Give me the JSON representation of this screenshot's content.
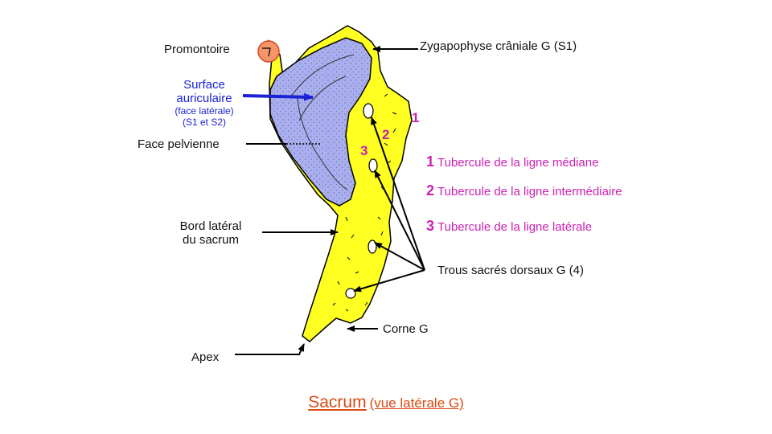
{
  "labels": {
    "promontoire": "Promontoire",
    "surface_line1": "Surface",
    "surface_line2": "auriculaire",
    "surface_sub1": "(face latérale)",
    "surface_sub2": "(S1 et S2)",
    "face_pelvienne": "Face pelvienne",
    "bord_line1": "Bord latéral",
    "bord_line2": "du sacrum",
    "apex": "Apex",
    "zygapophyse": "Zygapophyse crâniale G (S1)",
    "trous": "Trous sacrés dorsaux G (4)",
    "corne": "Corne G"
  },
  "numbers": {
    "n1": "1",
    "n2": "2",
    "n3": "3"
  },
  "legend": [
    {
      "num": "1",
      "text": "Tubercule de la ligne médiane"
    },
    {
      "num": "2",
      "text": "Tubercule de la ligne intermédiaire"
    },
    {
      "num": "3",
      "text": "Tubercule de la ligne latérale"
    }
  ],
  "caption": {
    "main": "Sacrum",
    "sub": "(vue latérale G)"
  },
  "colors": {
    "bone": "#ffff22",
    "auricular": "#a8aef0",
    "promontory": "#f4956a",
    "label_magenta": "#cc1fb3",
    "label_blue": "#1a22d6",
    "caption": "#d94a12"
  }
}
